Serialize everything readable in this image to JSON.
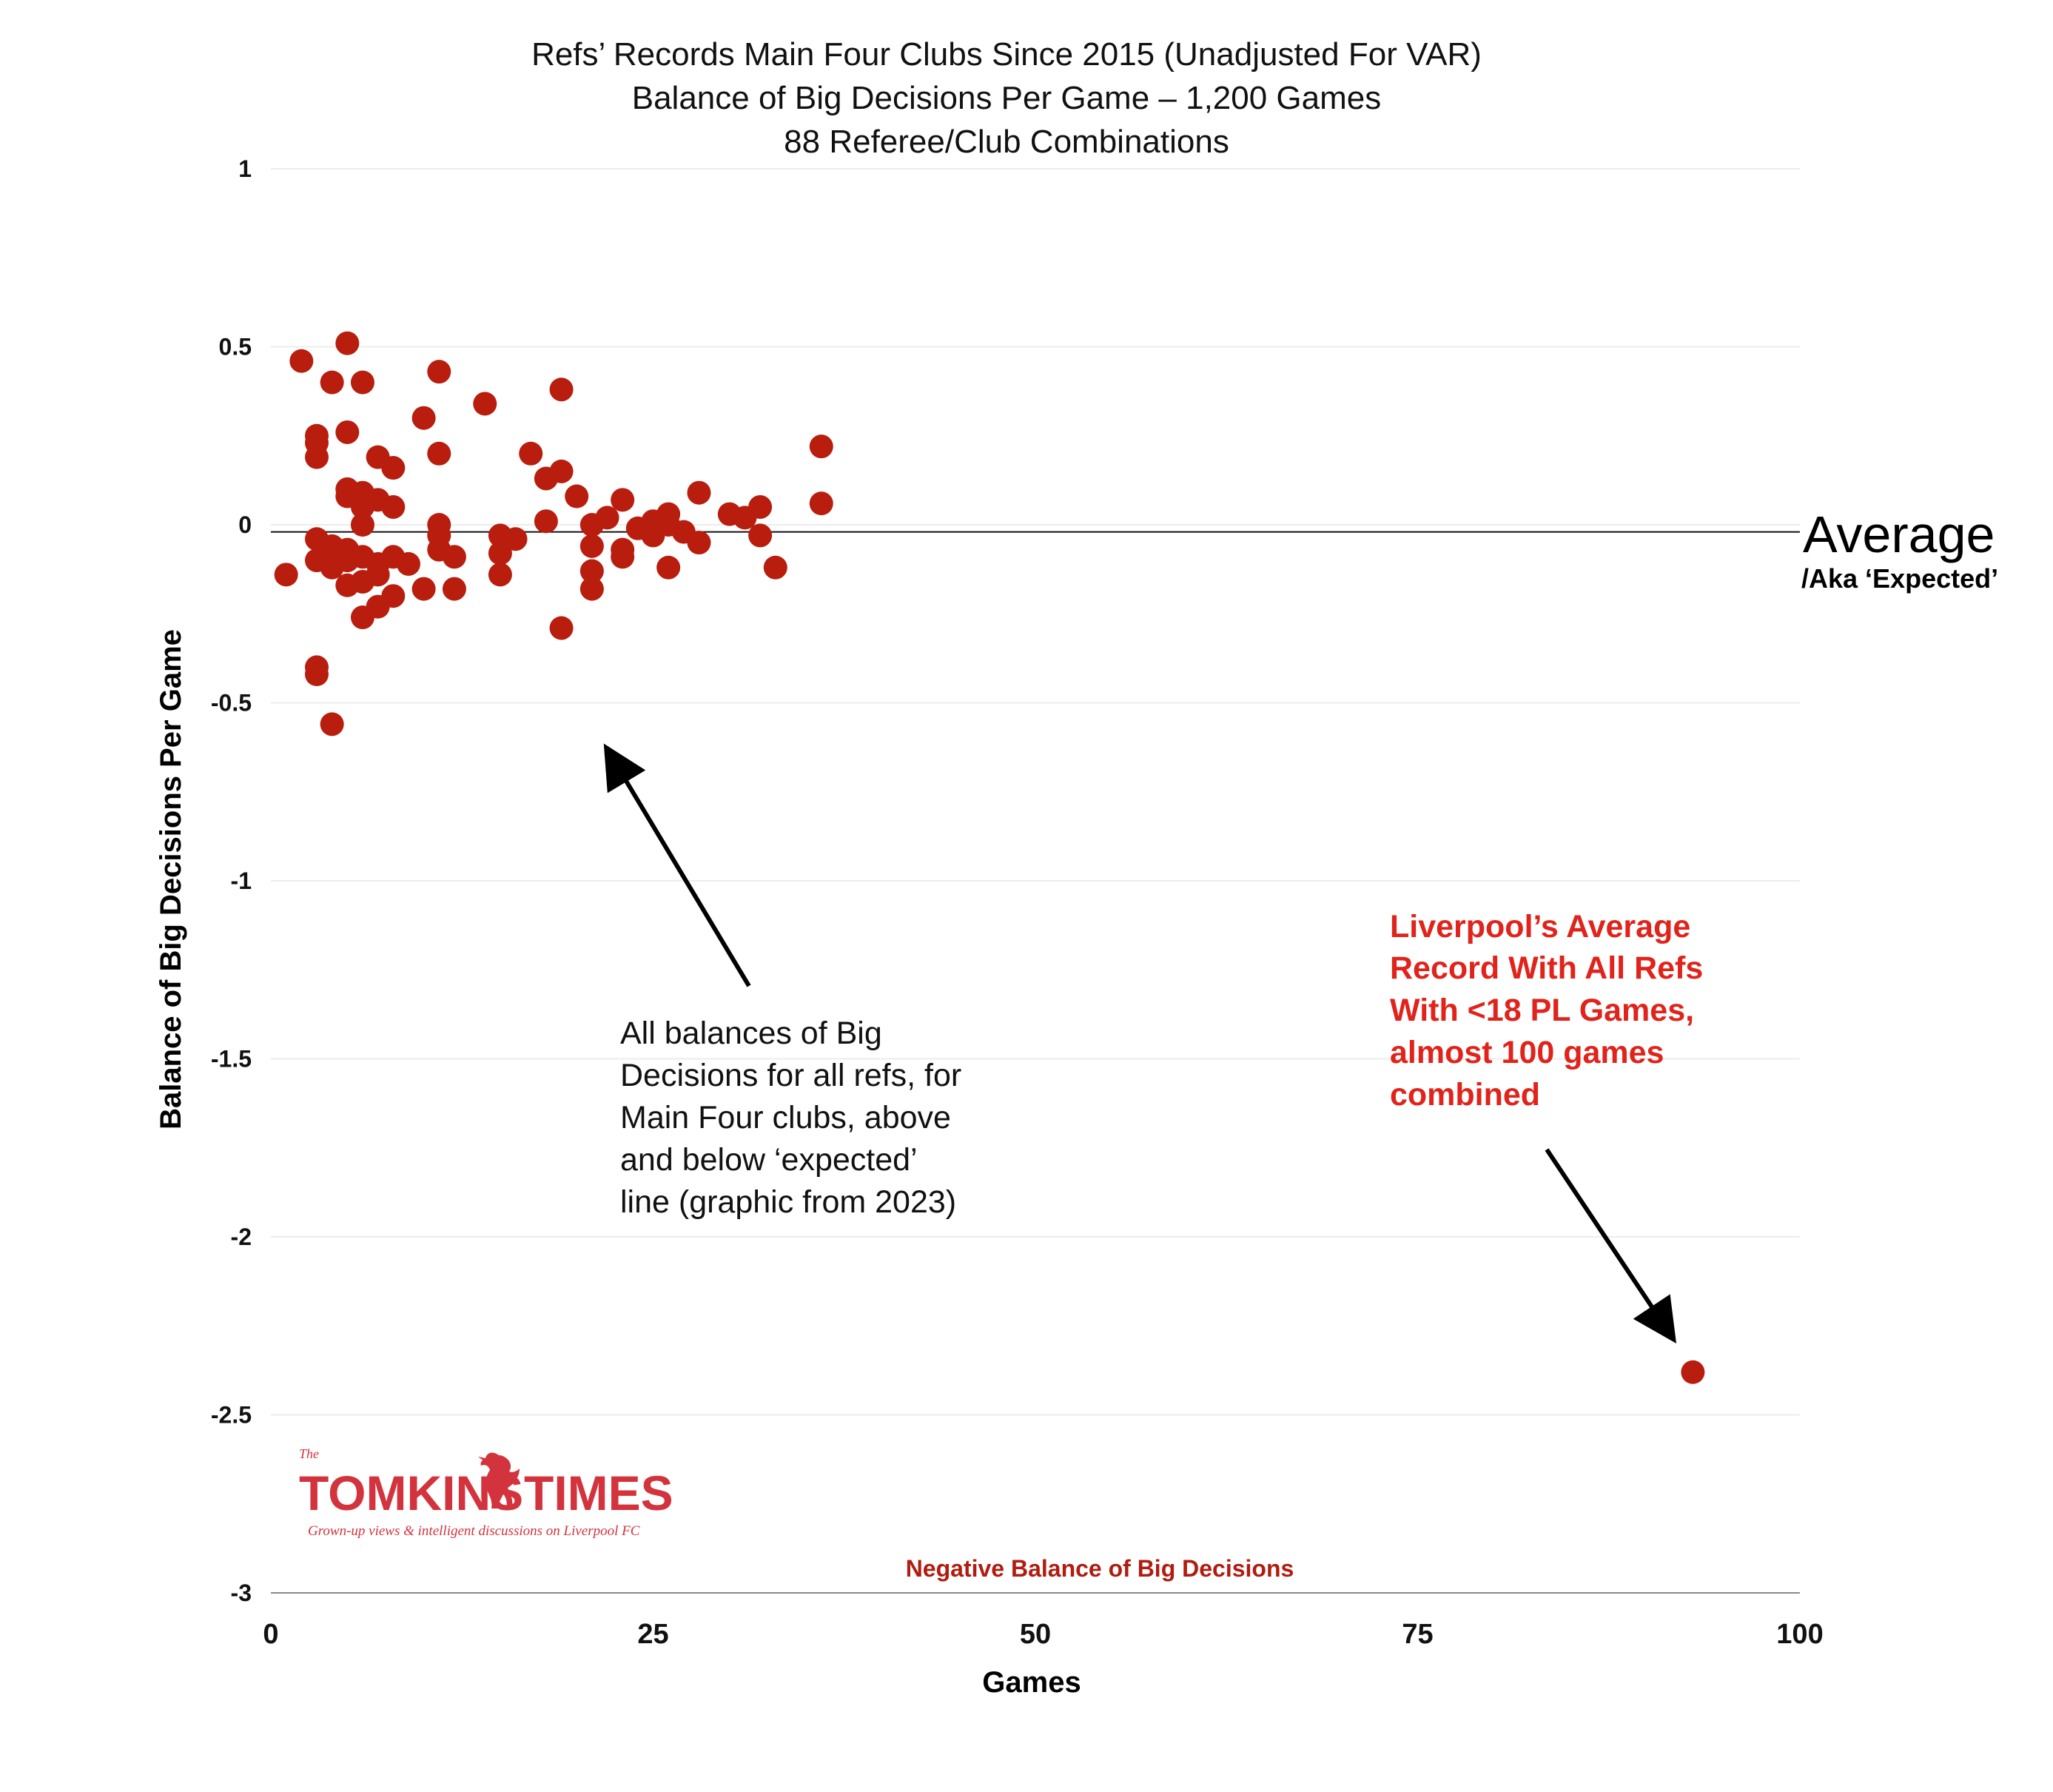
{
  "chart_data": {
    "type": "scatter",
    "title": "Refs’ Records Main Four Clubs Since 2015 (Unadjusted For VAR)",
    "subtitle_lines": [
      "Balance of Big Decisions Per Game – 1,200 Games",
      "88 Referee/Club Combinations"
    ],
    "xlabel": "Games",
    "ylabel": "Balance of Big Decisions Per Game",
    "xlim": [
      0,
      100
    ],
    "ylim": [
      -3,
      1
    ],
    "x_ticks": [
      "0",
      "25",
      "50",
      "75",
      "100"
    ],
    "y_ticks": [
      "1",
      "0.5",
      "0",
      "-0.5",
      "-1",
      "-1.5",
      "-2",
      "-2.5",
      "-3"
    ],
    "grid": "horizontal",
    "reference_line": {
      "y": -0.02
    },
    "point_color": "#b81d0e",
    "series": [
      {
        "points": [
          [
            1,
            -0.14
          ],
          [
            2,
            0.46
          ],
          [
            3,
            0.25
          ],
          [
            3,
            0.23
          ],
          [
            3,
            0.19
          ],
          [
            3,
            -0.04
          ],
          [
            3,
            -0.1
          ],
          [
            3,
            -0.4
          ],
          [
            3,
            -0.42
          ],
          [
            4,
            0.4
          ],
          [
            4,
            -0.06
          ],
          [
            4,
            -0.09
          ],
          [
            4,
            -0.12
          ],
          [
            4,
            -0.56
          ],
          [
            5,
            0.51
          ],
          [
            5,
            0.26
          ],
          [
            5,
            0.1
          ],
          [
            5,
            0.08
          ],
          [
            5,
            -0.07
          ],
          [
            5,
            -0.1
          ],
          [
            5,
            -0.17
          ],
          [
            6,
            0.4
          ],
          [
            6,
            0.09
          ],
          [
            6,
            0.05
          ],
          [
            6,
            0.0
          ],
          [
            6,
            -0.09
          ],
          [
            6,
            -0.16
          ],
          [
            6,
            -0.26
          ],
          [
            7,
            0.19
          ],
          [
            7,
            0.07
          ],
          [
            7,
            -0.11
          ],
          [
            7,
            -0.14
          ],
          [
            7,
            -0.23
          ],
          [
            8,
            0.16
          ],
          [
            8,
            0.05
          ],
          [
            8,
            -0.09
          ],
          [
            8,
            -0.2
          ],
          [
            9,
            -0.11
          ],
          [
            10,
            0.3
          ],
          [
            10,
            -0.18
          ],
          [
            11,
            0.43
          ],
          [
            11,
            0.2
          ],
          [
            11,
            0.0
          ],
          [
            11,
            -0.03
          ],
          [
            11,
            -0.07
          ],
          [
            12,
            -0.09
          ],
          [
            12,
            -0.18
          ],
          [
            14,
            0.34
          ],
          [
            15,
            -0.03
          ],
          [
            15,
            -0.08
          ],
          [
            15,
            -0.14
          ],
          [
            16,
            -0.04
          ],
          [
            17,
            0.2
          ],
          [
            18,
            0.13
          ],
          [
            18,
            0.01
          ],
          [
            19,
            0.38
          ],
          [
            19,
            0.15
          ],
          [
            19,
            -0.29
          ],
          [
            20,
            0.08
          ],
          [
            21,
            0.0
          ],
          [
            21,
            -0.06
          ],
          [
            21,
            -0.13
          ],
          [
            21,
            -0.18
          ],
          [
            22,
            0.02
          ],
          [
            23,
            0.07
          ],
          [
            23,
            -0.07
          ],
          [
            23,
            -0.09
          ],
          [
            24,
            -0.01
          ],
          [
            25,
            0.01
          ],
          [
            25,
            -0.03
          ],
          [
            26,
            0.03
          ],
          [
            26,
            0.0
          ],
          [
            26,
            -0.12
          ],
          [
            27,
            -0.02
          ],
          [
            28,
            0.09
          ],
          [
            28,
            -0.05
          ],
          [
            30,
            0.03
          ],
          [
            31,
            0.02
          ],
          [
            32,
            0.05
          ],
          [
            32,
            -0.03
          ],
          [
            33,
            -0.12
          ],
          [
            36,
            0.22
          ],
          [
            36,
            0.06
          ],
          [
            93,
            -2.38
          ]
        ]
      }
    ],
    "annotations": [
      {
        "id": "all_refs",
        "lines": [
          "All balances of Big",
          "Decisions for all refs, for",
          "Main Four clubs, above",
          "and below ‘expected’",
          "line (graphic from 2023)"
        ]
      },
      {
        "id": "liverpool",
        "color": "#e0231b",
        "lines": [
          "Liverpool’s Average",
          "Record With All Refs",
          "With <18 PL Games,",
          "almost 100 games",
          "combined"
        ]
      }
    ],
    "average_label": "Average",
    "average_sublabel": "/Aka ‘Expected’",
    "bottom_note": "Negative Balance of Big Decisions"
  },
  "logo": {
    "the": "The",
    "left_word": "TOMKINS",
    "right_word": "TIMES",
    "tagline": "Grown-up views & intelligent discussions on Liverpool FC",
    "color": "#d3333d"
  }
}
